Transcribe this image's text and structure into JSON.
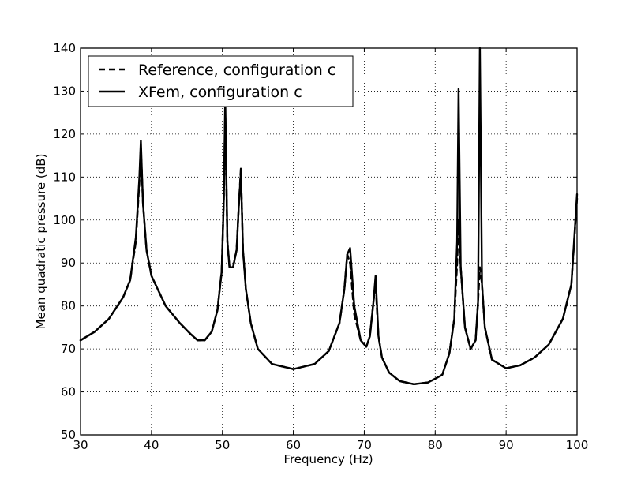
{
  "chart_data": {
    "type": "line",
    "title": "",
    "xlabel": "Frequency (Hz)",
    "ylabel": "Mean quadratic pressure (dB)",
    "xlim": [
      30,
      100
    ],
    "ylim": [
      50,
      140
    ],
    "xticks": [
      "30",
      "40",
      "50",
      "60",
      "70",
      "80",
      "90",
      "100"
    ],
    "yticks": [
      "50",
      "60",
      "70",
      "80",
      "90",
      "100",
      "110",
      "120",
      "130",
      "140"
    ],
    "grid": true,
    "legend_position": "top-left",
    "series": [
      {
        "name": "Reference, configuration c",
        "style": "dashed",
        "color": "#000000",
        "x": [
          30,
          32,
          34,
          36,
          37,
          37.8,
          38.3,
          38.5,
          38.8,
          39.3,
          40,
          42,
          44,
          45.5,
          46.5,
          47.5,
          48.5,
          49.3,
          49.9,
          50.2,
          50.4,
          50.7,
          51,
          51.5,
          52,
          52.3,
          52.6,
          52.9,
          53.3,
          54,
          55,
          57,
          60,
          63,
          65,
          66.5,
          67.2,
          67.6,
          68,
          68.6,
          69.5,
          70.3,
          70.8,
          71.3,
          71.6,
          72,
          72.5,
          73.5,
          75,
          77,
          79,
          80.5,
          81,
          82,
          82.7,
          83.1,
          83.3,
          83.6,
          84.2,
          85,
          85.7,
          86.05,
          86.3,
          86.6,
          87,
          88,
          90,
          92,
          94,
          96,
          98,
          99.2,
          100
        ],
        "y": [
          72,
          74,
          77,
          82,
          86,
          95,
          109,
          117,
          104,
          93,
          87,
          80,
          76,
          73.5,
          72,
          72,
          74,
          79,
          88,
          105,
          125,
          95,
          89,
          89,
          93,
          103,
          112,
          93,
          84,
          76,
          70,
          66.5,
          65.3,
          66.5,
          69.5,
          76,
          84,
          92,
          90,
          78,
          72,
          70.5,
          73,
          81,
          85,
          73,
          68,
          64.5,
          62.5,
          61.8,
          62.2,
          63.5,
          64,
          69,
          77,
          90,
          100,
          89,
          75,
          70,
          72,
          81,
          89,
          85,
          75,
          67.5,
          65.5,
          66.2,
          68,
          71,
          77,
          85,
          105
        ]
      },
      {
        "name": "XFem, configuration c",
        "style": "solid",
        "color": "#000000",
        "x": [
          30,
          32,
          34,
          36,
          37,
          37.8,
          38.3,
          38.5,
          38.8,
          39.3,
          40,
          42,
          44,
          45.5,
          46.5,
          47.5,
          48.5,
          49.3,
          49.9,
          50.2,
          50.4,
          50.7,
          51,
          51.5,
          52,
          52.3,
          52.6,
          52.9,
          53.3,
          54,
          55,
          57,
          60,
          63,
          65,
          66.5,
          67.2,
          67.6,
          68,
          68.6,
          69.5,
          70.3,
          70.8,
          71.3,
          71.6,
          72,
          72.5,
          73.5,
          75,
          77,
          79,
          80.5,
          81,
          82,
          82.7,
          83.1,
          83.3,
          83.6,
          84.2,
          85,
          85.7,
          86.05,
          86.3,
          86.6,
          87,
          88,
          90,
          92,
          94,
          96,
          98,
          99.2,
          100
        ],
        "y": [
          72,
          74,
          77,
          82,
          86,
          96,
          110,
          118.5,
          104,
          93,
          87,
          80,
          76,
          73.5,
          72,
          72,
          74,
          79,
          88,
          105,
          128,
          95,
          89,
          89,
          93,
          103,
          111,
          93,
          84,
          76,
          70,
          66.5,
          65.3,
          66.5,
          69.5,
          76,
          84,
          92,
          93.5,
          80,
          72,
          70.5,
          73,
          81,
          87,
          73,
          68,
          64.5,
          62.5,
          61.8,
          62.2,
          63.5,
          64,
          69,
          77,
          95,
          130.5,
          89,
          75,
          70,
          72,
          81,
          140,
          85,
          75,
          67.5,
          65.5,
          66.2,
          68,
          71,
          77,
          85,
          106
        ]
      }
    ]
  }
}
